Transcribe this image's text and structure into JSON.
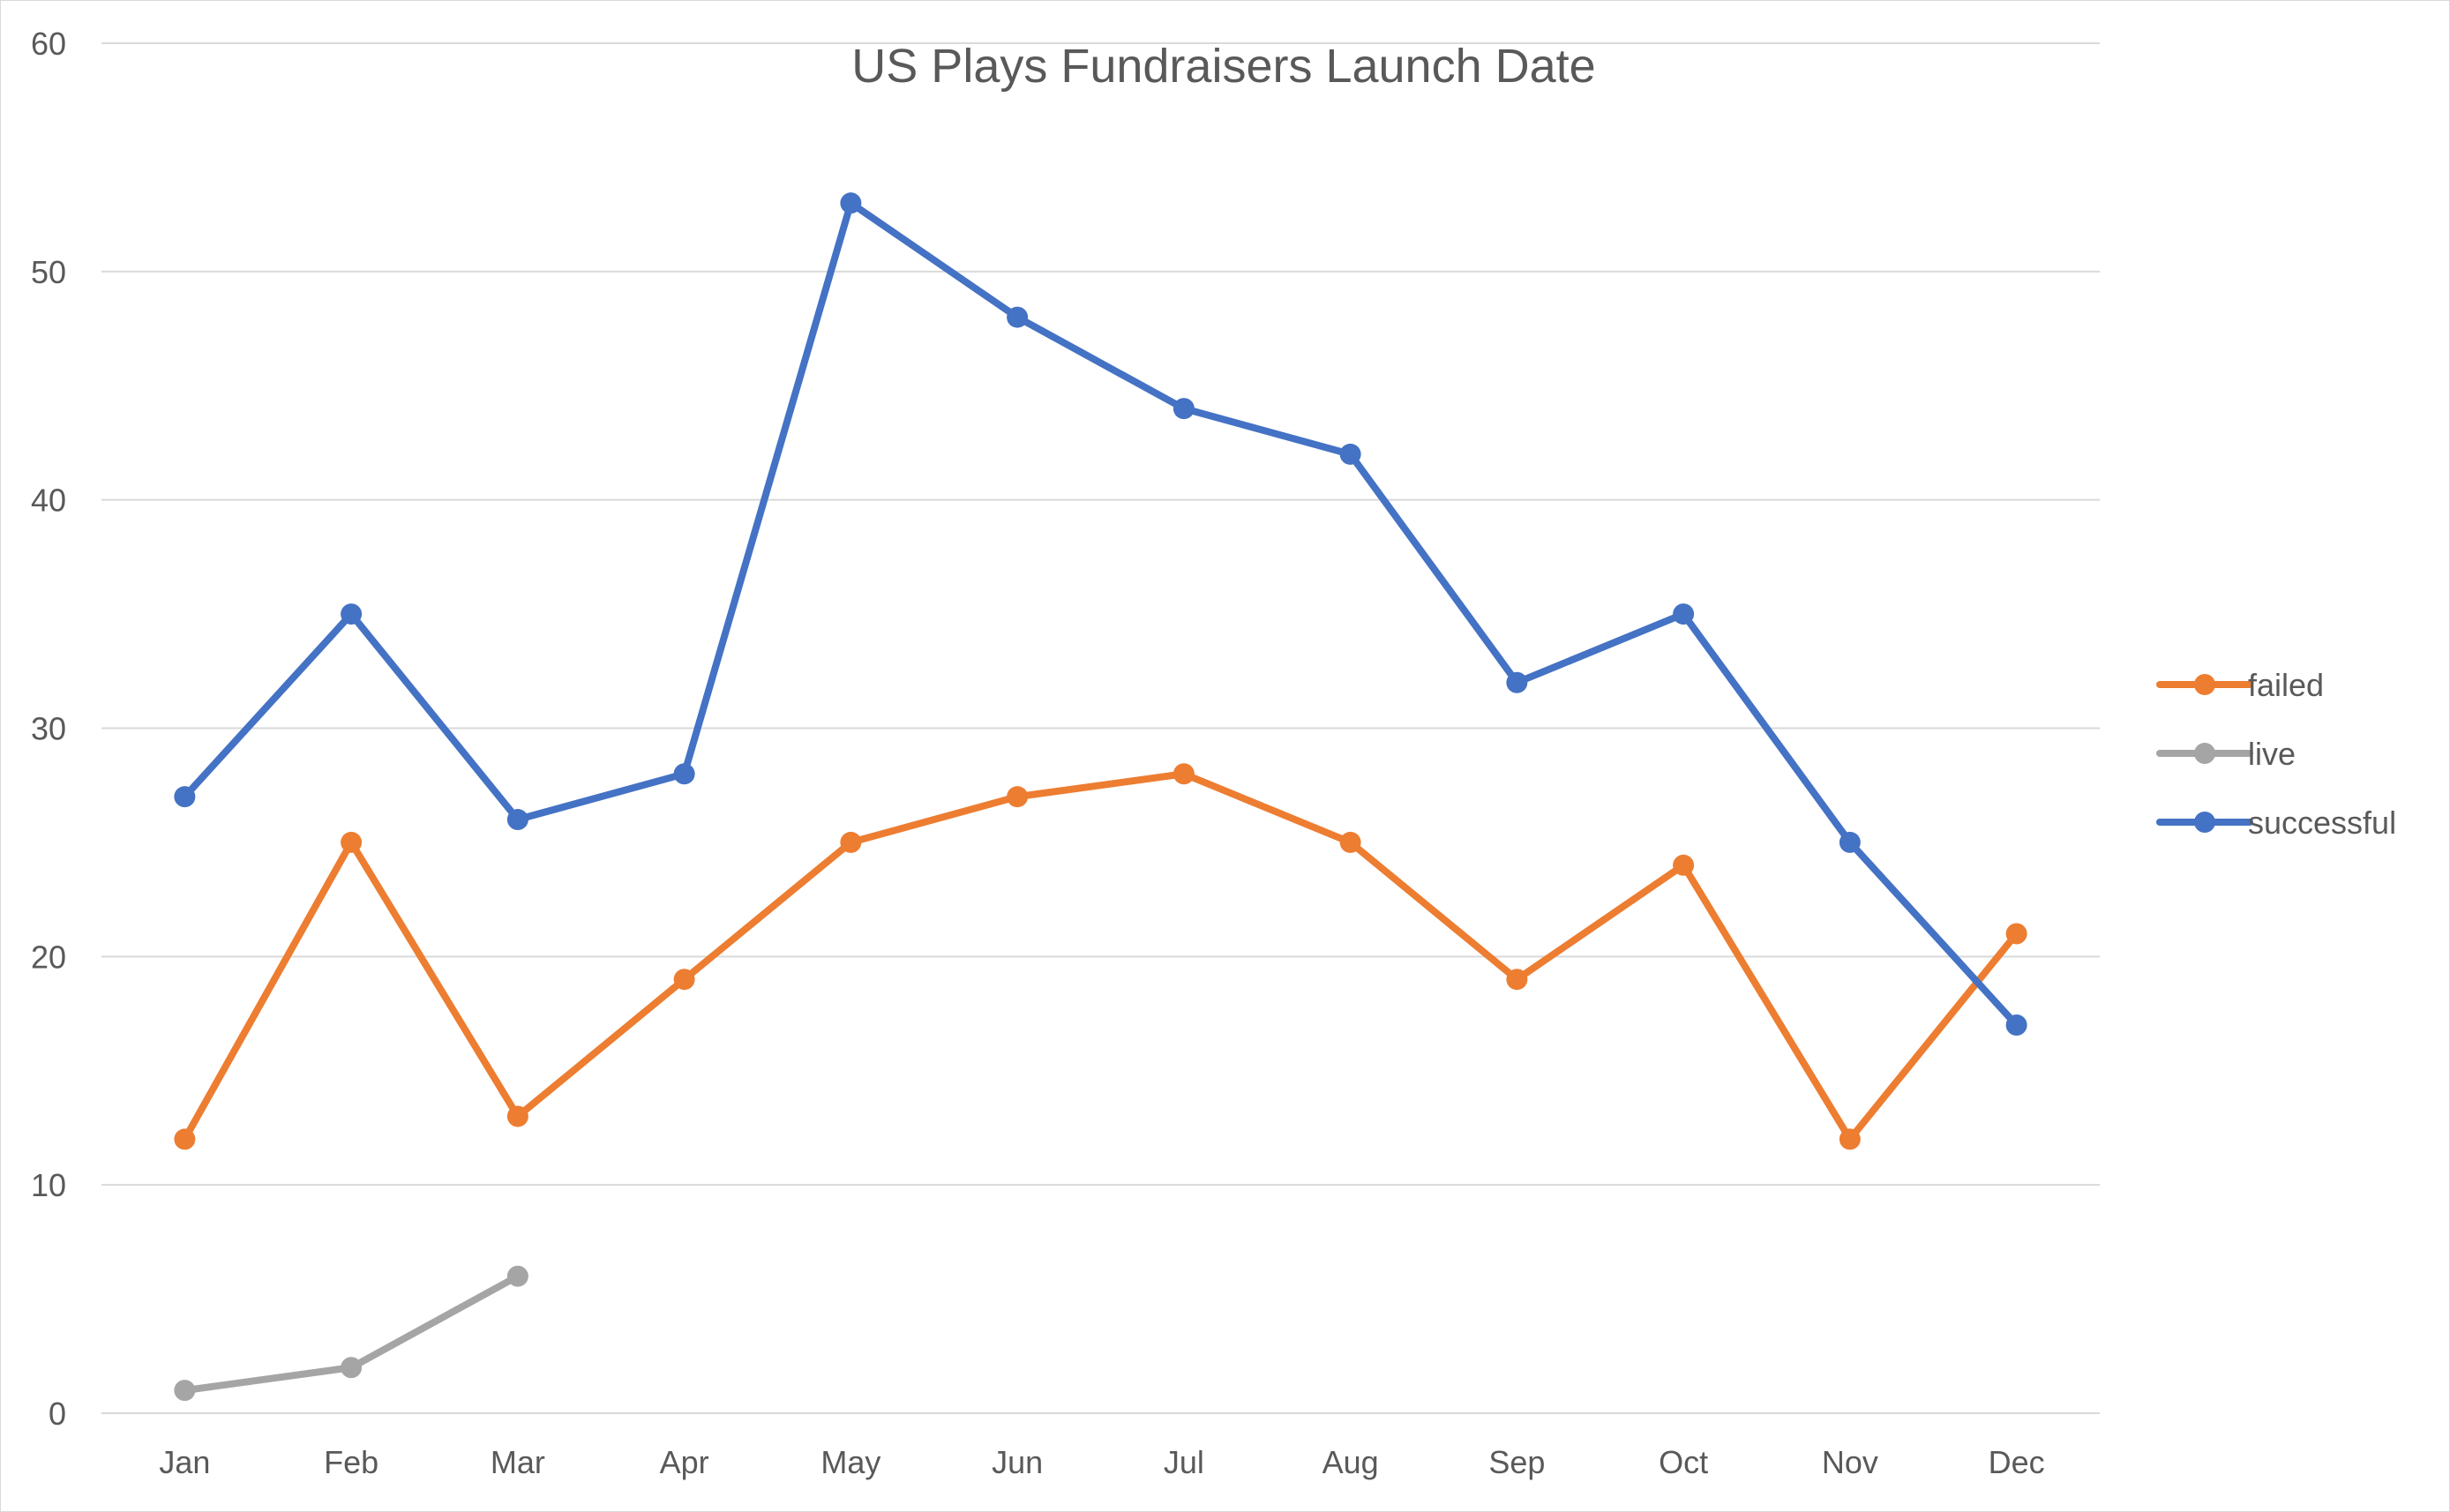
{
  "chart_data": {
    "type": "line",
    "title": "US Plays Fundraisers Launch Date",
    "xlabel": "",
    "ylabel": "",
    "categories": [
      "Jan",
      "Feb",
      "Mar",
      "Apr",
      "May",
      "Jun",
      "Jul",
      "Aug",
      "Sep",
      "Oct",
      "Nov",
      "Dec"
    ],
    "ylim": [
      0,
      60
    ],
    "yticks": [
      "0",
      "10",
      "20",
      "30",
      "40",
      "50",
      "60"
    ],
    "grid": true,
    "legend_position": "right",
    "series": [
      {
        "name": "failed",
        "color": "#ED7D31",
        "values": [
          12,
          25,
          13,
          19,
          25,
          27,
          28,
          25,
          19,
          24,
          12,
          21
        ]
      },
      {
        "name": "live",
        "color": "#A5A5A5",
        "values": [
          1,
          2,
          6,
          null,
          null,
          null,
          null,
          null,
          null,
          null,
          null,
          null
        ]
      },
      {
        "name": "successful",
        "color": "#4472C4",
        "values": [
          27,
          35,
          26,
          28,
          53,
          48,
          44,
          42,
          32,
          35,
          25,
          17
        ]
      }
    ]
  }
}
